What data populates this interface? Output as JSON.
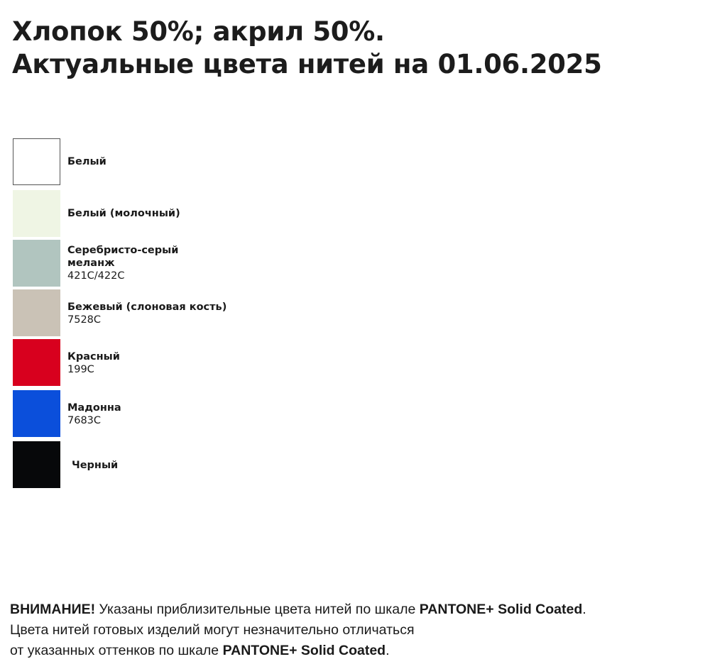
{
  "title": {
    "line1": "Хлопок 50%; акрил 50%.",
    "line2": "Актуальные цвета нитей на 01.06.2025"
  },
  "colors": [
    {
      "name": "Белый",
      "code": "",
      "hex": "#ffffff"
    },
    {
      "name": "Белый (молочный)",
      "code": "",
      "hex": "#eff5e4"
    },
    {
      "name": "Серебристо-серый меланж",
      "code": "421C/422C",
      "hex": "#b1c5bf"
    },
    {
      "name": "Бежевый (слоновая кость)",
      "code": "7528C",
      "hex": "#cac2b6"
    },
    {
      "name": "Красный",
      "code": "199C",
      "hex": "#d8001e"
    },
    {
      "name": "Мадонна",
      "code": "7683C",
      "hex": "#0b4fdb"
    },
    {
      "name": "Черный",
      "code": "",
      "hex": "#07080a"
    }
  ],
  "footer": {
    "attention": "ВНИМАНИЕ!",
    "line1_text": " Указаны приблизительные цвета нитей по шкале ",
    "pantone": "PANTONE+ Solid Coated",
    "period": ".",
    "line2": "Цвета нитей готовых изделий могут незначительно отличаться",
    "line3_text": "от указанных оттенков по шкале "
  }
}
